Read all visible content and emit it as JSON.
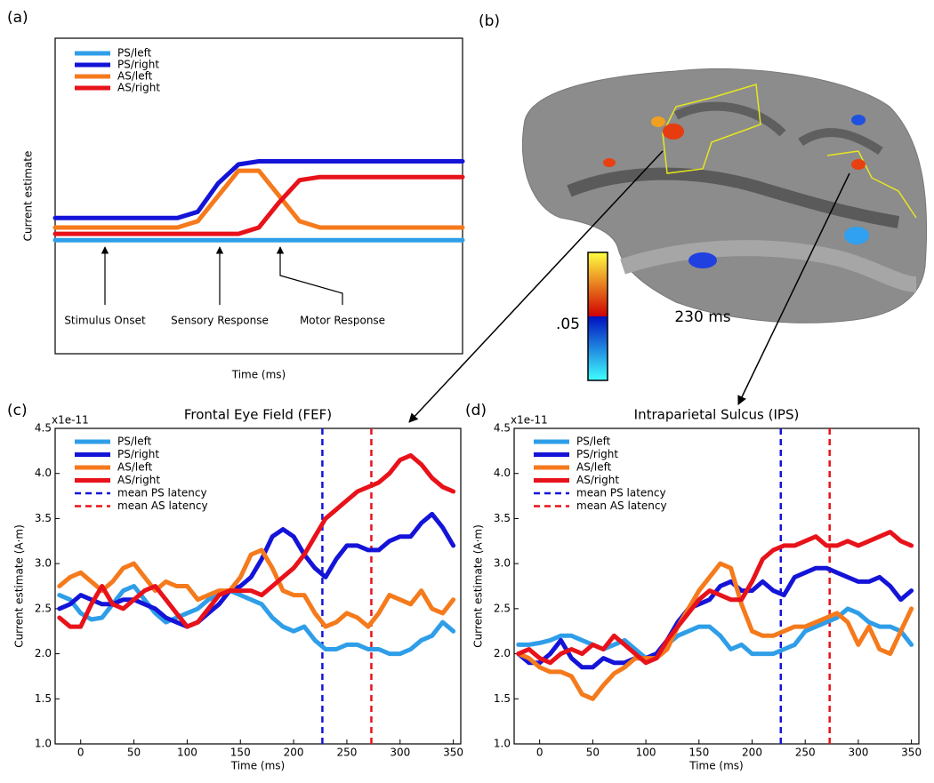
{
  "chart_data": [
    {
      "type": "line",
      "panel_label": "(a)",
      "xlabel": "Time (ms)",
      "ylabel": "Current estimate",
      "x": [
        0,
        5,
        10,
        15,
        20,
        25,
        30,
        35,
        40,
        45,
        50,
        55,
        60,
        65,
        70,
        75,
        80,
        85,
        90,
        95,
        100
      ],
      "xlim": [
        0,
        100
      ],
      "ylim": [
        0,
        10
      ],
      "legend": "upper left",
      "series": [
        {
          "name": "PS/left",
          "color": "#2f9ee8",
          "values": [
            3.6,
            3.6,
            3.6,
            3.6,
            3.6,
            3.6,
            3.6,
            3.6,
            3.6,
            3.6,
            3.6,
            3.6,
            3.6,
            3.6,
            3.6,
            3.6,
            3.6,
            3.6,
            3.6,
            3.6,
            3.6
          ]
        },
        {
          "name": "PS/right",
          "color": "#1414d8",
          "values": [
            4.3,
            4.3,
            4.3,
            4.3,
            4.3,
            4.3,
            4.3,
            4.5,
            5.4,
            6.0,
            6.1,
            6.1,
            6.1,
            6.1,
            6.1,
            6.1,
            6.1,
            6.1,
            6.1,
            6.1,
            6.1
          ]
        },
        {
          "name": "AS/left",
          "color": "#f57a1c",
          "values": [
            4.0,
            4.0,
            4.0,
            4.0,
            4.0,
            4.0,
            4.0,
            4.2,
            5.0,
            5.8,
            5.8,
            5.0,
            4.2,
            4.0,
            4.0,
            4.0,
            4.0,
            4.0,
            4.0,
            4.0,
            4.0
          ]
        },
        {
          "name": "AS/right",
          "color": "#e8121a",
          "values": [
            3.8,
            3.8,
            3.8,
            3.8,
            3.8,
            3.8,
            3.8,
            3.8,
            3.8,
            3.8,
            4.0,
            4.8,
            5.5,
            5.6,
            5.6,
            5.6,
            5.6,
            5.6,
            5.6,
            5.6,
            5.6
          ]
        }
      ],
      "annotations": [
        "Stimulus Onset",
        "Sensory Response",
        "Motor Response"
      ]
    },
    {
      "type": "line",
      "panel_label": "(c)",
      "title": "Frontal Eye Field (FEF)",
      "offset_label": "x1e-11",
      "xlabel": "Time (ms)",
      "ylabel": "Current estimate (A·m)",
      "x": [
        -20,
        -10,
        0,
        10,
        20,
        30,
        40,
        50,
        60,
        70,
        80,
        90,
        100,
        110,
        120,
        130,
        140,
        150,
        160,
        170,
        180,
        190,
        200,
        210,
        220,
        230,
        240,
        250,
        260,
        270,
        280,
        290,
        300,
        310,
        320,
        330,
        340,
        350
      ],
      "xlim": [
        -24,
        357
      ],
      "ylim": [
        1,
        4.5
      ],
      "xticks": [
        0,
        50,
        100,
        150,
        200,
        250,
        300,
        350
      ],
      "yticks": [
        {
          "value": 1,
          "label": "1.0"
        },
        1.5,
        {
          "value": 2,
          "label": "2.0"
        },
        2.5,
        {
          "value": 3,
          "label": "3.0"
        },
        3.5,
        {
          "value": 4,
          "label": "4.0"
        },
        4.5
      ],
      "legend": "upper left",
      "series": [
        {
          "name": "PS/left",
          "color": "#2f9ee8",
          "values": [
            2.65,
            2.6,
            2.45,
            2.38,
            2.4,
            2.55,
            2.7,
            2.75,
            2.6,
            2.45,
            2.35,
            2.4,
            2.45,
            2.5,
            2.6,
            2.65,
            2.7,
            2.65,
            2.6,
            2.55,
            2.4,
            2.3,
            2.25,
            2.3,
            2.15,
            2.05,
            2.05,
            2.1,
            2.1,
            2.05,
            2.05,
            2.0,
            2.0,
            2.05,
            2.15,
            2.2,
            2.35,
            2.25
          ]
        },
        {
          "name": "PS/right",
          "color": "#1414d8",
          "values": [
            2.5,
            2.55,
            2.65,
            2.6,
            2.55,
            2.55,
            2.6,
            2.6,
            2.55,
            2.5,
            2.4,
            2.35,
            2.3,
            2.35,
            2.45,
            2.55,
            2.7,
            2.75,
            2.85,
            3.05,
            3.3,
            3.38,
            3.3,
            3.1,
            2.95,
            2.85,
            3.05,
            3.2,
            3.2,
            3.15,
            3.15,
            3.25,
            3.3,
            3.3,
            3.45,
            3.55,
            3.4,
            3.2
          ]
        },
        {
          "name": "AS/left",
          "color": "#f57a1c",
          "values": [
            2.75,
            2.85,
            2.9,
            2.8,
            2.7,
            2.8,
            2.95,
            3.0,
            2.85,
            2.7,
            2.8,
            2.75,
            2.75,
            2.6,
            2.65,
            2.7,
            2.7,
            2.85,
            3.1,
            3.15,
            2.95,
            2.7,
            2.65,
            2.65,
            2.45,
            2.3,
            2.35,
            2.45,
            2.4,
            2.3,
            2.45,
            2.65,
            2.6,
            2.55,
            2.7,
            2.5,
            2.45,
            2.6
          ]
        },
        {
          "name": "AS/right",
          "color": "#e8121a",
          "values": [
            2.4,
            2.3,
            2.3,
            2.55,
            2.75,
            2.55,
            2.5,
            2.6,
            2.7,
            2.75,
            2.6,
            2.45,
            2.3,
            2.35,
            2.5,
            2.65,
            2.7,
            2.7,
            2.7,
            2.65,
            2.75,
            2.85,
            2.95,
            3.1,
            3.3,
            3.5,
            3.6,
            3.7,
            3.8,
            3.85,
            3.9,
            4.0,
            4.15,
            4.2,
            4.1,
            3.95,
            3.85,
            3.8
          ]
        }
      ],
      "reference_lines": [
        {
          "name": "mean PS latency",
          "color": "#1414d8",
          "x": 227
        },
        {
          "name": "mean AS latency",
          "color": "#e8121a",
          "x": 273
        }
      ]
    },
    {
      "type": "line",
      "panel_label": "(d)",
      "title": "Intraparietal Sulcus (IPS)",
      "offset_label": "x1e-11",
      "xlabel": "Time (ms)",
      "ylabel": "Current estimate (A·m)",
      "x": [
        -20,
        -10,
        0,
        10,
        20,
        30,
        40,
        50,
        60,
        70,
        80,
        90,
        100,
        110,
        120,
        130,
        140,
        150,
        160,
        170,
        180,
        190,
        200,
        210,
        220,
        230,
        240,
        250,
        260,
        270,
        280,
        290,
        300,
        310,
        320,
        330,
        340,
        350
      ],
      "xlim": [
        -24,
        357
      ],
      "ylim": [
        1,
        4.5
      ],
      "xticks": [
        0,
        50,
        100,
        150,
        200,
        250,
        300,
        350
      ],
      "yticks": [
        {
          "value": 1,
          "label": "1.0"
        },
        1.5,
        {
          "value": 2,
          "label": "2.0"
        },
        2.5,
        {
          "value": 3,
          "label": "3.0"
        },
        3.5,
        {
          "value": 4,
          "label": "4.0"
        },
        4.5
      ],
      "legend": "upper left",
      "series": [
        {
          "name": "PS/left",
          "color": "#2f9ee8",
          "values": [
            2.1,
            2.1,
            2.12,
            2.15,
            2.2,
            2.2,
            2.15,
            2.1,
            2.05,
            2.1,
            2.15,
            2.05,
            1.95,
            2.0,
            2.1,
            2.2,
            2.25,
            2.3,
            2.3,
            2.2,
            2.05,
            2.1,
            2.0,
            2.0,
            2.0,
            2.05,
            2.1,
            2.25,
            2.3,
            2.35,
            2.4,
            2.5,
            2.45,
            2.35,
            2.3,
            2.3,
            2.25,
            2.1
          ]
        },
        {
          "name": "PS/right",
          "color": "#1414d8",
          "values": [
            2.0,
            1.9,
            1.9,
            2.0,
            2.15,
            1.95,
            1.85,
            1.85,
            1.95,
            1.9,
            1.9,
            1.95,
            1.95,
            2.0,
            2.15,
            2.35,
            2.5,
            2.55,
            2.6,
            2.75,
            2.8,
            2.7,
            2.7,
            2.8,
            2.7,
            2.65,
            2.85,
            2.9,
            2.95,
            2.95,
            2.9,
            2.85,
            2.8,
            2.8,
            2.85,
            2.75,
            2.6,
            2.7
          ]
        },
        {
          "name": "AS/left",
          "color": "#f57a1c",
          "values": [
            2.0,
            1.95,
            1.85,
            1.8,
            1.8,
            1.75,
            1.55,
            1.5,
            1.65,
            1.78,
            1.85,
            1.95,
            1.95,
            1.95,
            2.05,
            2.3,
            2.5,
            2.7,
            2.85,
            3.0,
            2.95,
            2.55,
            2.25,
            2.2,
            2.2,
            2.25,
            2.3,
            2.3,
            2.35,
            2.4,
            2.45,
            2.35,
            2.1,
            2.3,
            2.05,
            2.0,
            2.25,
            2.5
          ]
        },
        {
          "name": "AS/right",
          "color": "#e8121a",
          "values": [
            2.0,
            2.05,
            1.95,
            1.9,
            2.0,
            2.05,
            2.0,
            2.1,
            2.05,
            2.2,
            2.1,
            2.0,
            1.9,
            1.95,
            2.15,
            2.3,
            2.45,
            2.6,
            2.7,
            2.65,
            2.6,
            2.6,
            2.8,
            3.05,
            3.15,
            3.2,
            3.2,
            3.25,
            3.3,
            3.2,
            3.2,
            3.25,
            3.2,
            3.25,
            3.3,
            3.35,
            3.25,
            3.2
          ]
        }
      ],
      "reference_lines": [
        {
          "name": "mean PS latency",
          "color": "#1414d8",
          "x": 227
        },
        {
          "name": "mean AS latency",
          "color": "#e8121a",
          "x": 273
        }
      ]
    }
  ],
  "brain": {
    "panel_label": "(b)",
    "colorbar_label": ".05",
    "time_label": "230 ms"
  }
}
